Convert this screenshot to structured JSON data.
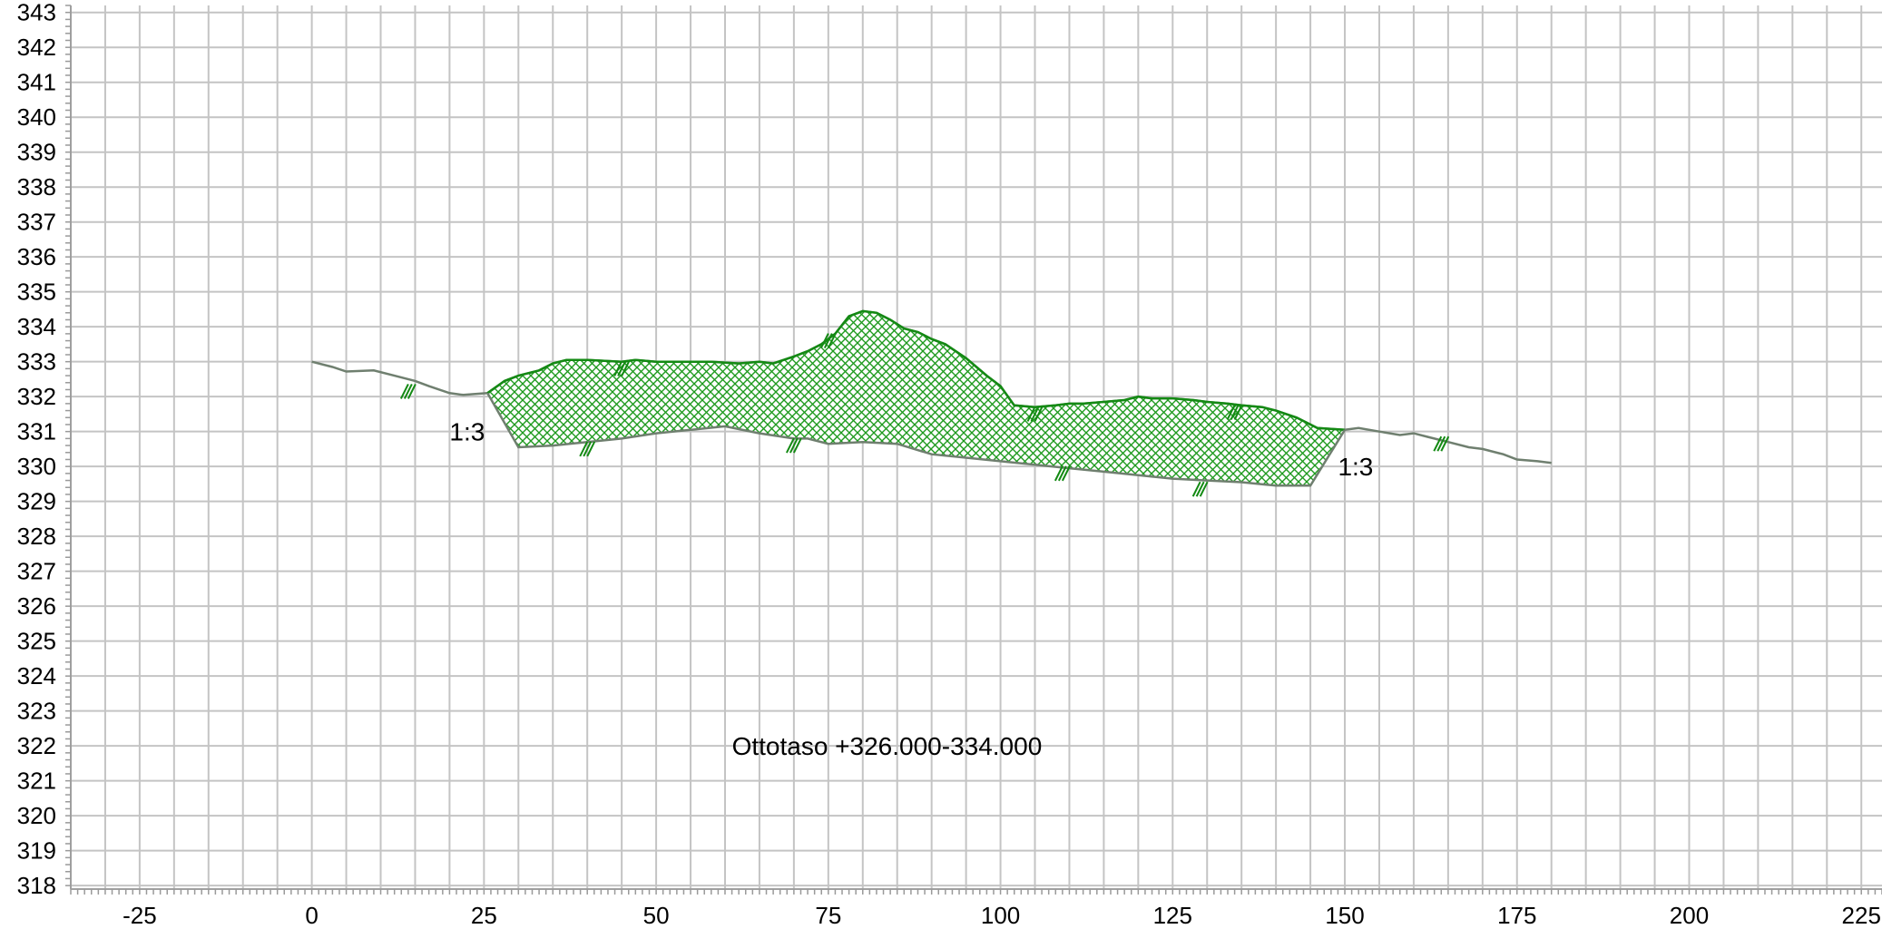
{
  "chart_data": {
    "type": "area",
    "title": "",
    "xlabel": "",
    "ylabel": "",
    "xlim": [
      -35,
      228
    ],
    "ylim": [
      317.9,
      343.2
    ],
    "grid": true,
    "x_grid_step": 5,
    "y_grid_step": 1,
    "x_ticks": [
      -25,
      0,
      25,
      50,
      75,
      100,
      125,
      150,
      175,
      200,
      225
    ],
    "y_ticks": [
      318,
      319,
      320,
      321,
      322,
      323,
      324,
      325,
      326,
      327,
      328,
      329,
      330,
      331,
      332,
      333,
      334,
      335,
      336,
      337,
      338,
      339,
      340,
      341,
      342,
      343
    ],
    "colors": {
      "grid": "#c4c4c4",
      "fill": "#22a022",
      "outline": "#138a13",
      "ground": "#6f7f6f"
    },
    "series": [
      {
        "x": [
          0,
          3,
          5,
          9,
          12,
          15,
          17,
          20,
          22,
          25.5,
          28,
          30,
          33,
          35,
          37,
          40,
          45,
          47,
          50,
          55,
          58,
          62,
          65,
          67,
          70,
          72,
          74,
          76,
          78,
          80,
          82,
          84,
          86,
          88,
          90,
          92,
          95,
          98,
          100,
          102,
          105,
          108,
          110,
          112,
          115,
          118,
          120,
          122,
          125,
          128,
          130,
          133,
          135,
          138,
          140,
          143,
          146,
          150,
          152,
          155,
          158,
          160,
          162,
          165,
          168,
          170,
          173,
          175,
          178,
          180
        ],
        "values": [
          333.0,
          332.85,
          332.72,
          332.75,
          332.6,
          332.45,
          332.3,
          332.1,
          332.05,
          332.1,
          332.45,
          332.6,
          332.75,
          332.95,
          333.05,
          333.05,
          333.0,
          333.05,
          333.0,
          333.0,
          333.0,
          332.95,
          333.0,
          332.95,
          333.15,
          333.3,
          333.5,
          333.8,
          334.3,
          334.45,
          334.4,
          334.2,
          333.95,
          333.85,
          333.65,
          333.5,
          333.1,
          332.6,
          332.3,
          331.75,
          331.7,
          331.75,
          331.8,
          331.8,
          331.85,
          331.9,
          332.0,
          331.95,
          331.95,
          331.9,
          331.85,
          331.8,
          331.75,
          331.7,
          331.6,
          331.4,
          331.1,
          331.05,
          331.1,
          331.0,
          330.9,
          330.95,
          330.85,
          330.7,
          330.55,
          330.5,
          330.35,
          330.2,
          330.15,
          330.1
        ]
      },
      {
        "x": [
          25.5,
          30,
          35,
          40,
          45,
          50,
          55,
          60,
          65,
          70,
          72,
          75,
          80,
          85,
          90,
          95,
          100,
          105,
          110,
          115,
          120,
          125,
          130,
          135,
          140,
          145,
          150
        ],
        "values": [
          332.1,
          330.55,
          330.6,
          330.7,
          330.8,
          330.95,
          331.05,
          331.15,
          330.95,
          330.8,
          330.8,
          330.65,
          330.7,
          330.65,
          330.35,
          330.25,
          330.15,
          330.05,
          329.95,
          329.85,
          329.75,
          329.65,
          329.6,
          329.55,
          329.45,
          329.45,
          331.05
        ]
      }
    ],
    "annotations": [
      {
        "text": "1:3",
        "x": 20,
        "y": 331
      },
      {
        "text": "1:3",
        "x": 149,
        "y": 330
      },
      {
        "text": "Ottotaso +326.000-334.000",
        "x": 61,
        "y": 322
      }
    ],
    "slope_marks": [
      {
        "x": 14,
        "y": 332.15
      },
      {
        "x": 40,
        "y": 330.5
      },
      {
        "x": 45,
        "y": 332.8
      },
      {
        "x": 70,
        "y": 330.6
      },
      {
        "x": 75,
        "y": 333.6
      },
      {
        "x": 105,
        "y": 331.5
      },
      {
        "x": 109,
        "y": 329.8
      },
      {
        "x": 129,
        "y": 329.35
      },
      {
        "x": 134,
        "y": 331.55
      },
      {
        "x": 164,
        "y": 330.65
      }
    ]
  }
}
